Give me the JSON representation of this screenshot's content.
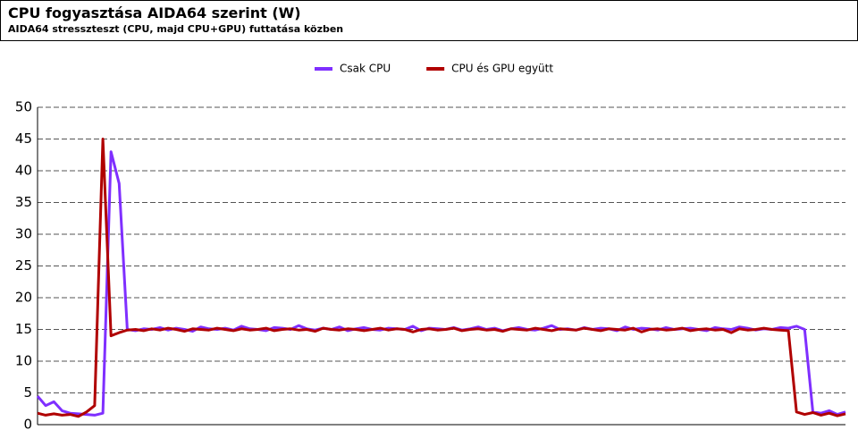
{
  "chart_data": {
    "type": "line",
    "title": "CPU fogyasztása AIDA64 szerint (W)",
    "subtitle": "AIDA64 stresszteszt (CPU, majd CPU+GPU) futtatása közben",
    "categories": [
      null,
      null,
      null,
      null,
      null,
      null,
      null,
      null,
      null,
      null,
      null,
      null,
      null,
      null,
      null,
      null,
      null,
      null,
      null,
      null,
      null,
      null,
      null,
      null,
      null,
      null,
      null,
      null,
      null,
      null,
      null,
      null,
      null,
      null,
      null,
      null,
      null,
      null,
      null,
      null,
      null,
      null,
      null,
      null,
      null,
      null,
      null,
      null,
      null,
      null,
      null,
      null,
      null,
      null,
      null,
      null,
      null,
      null,
      null,
      null,
      null,
      null,
      null,
      null,
      null,
      null,
      null,
      null,
      null,
      null,
      null,
      null,
      null,
      null,
      null,
      null,
      null,
      null,
      null,
      null,
      null,
      null,
      null,
      null,
      null,
      null,
      null,
      null,
      null,
      null,
      null,
      null,
      null,
      null,
      null,
      null,
      null,
      null,
      null,
      null
    ],
    "series": [
      {
        "name": "Csak CPU",
        "color": "#7f2fff",
        "values": [
          4.5,
          3.0,
          3.6,
          2.2,
          1.8,
          1.7,
          1.6,
          1.5,
          1.8,
          43.0,
          38.0,
          15.0,
          14.8,
          15.1,
          15.0,
          15.3,
          14.9,
          15.2,
          15.0,
          14.7,
          15.4,
          15.1,
          15.0,
          15.2,
          14.9,
          15.5,
          15.1,
          15.0,
          14.8,
          15.3,
          15.2,
          15.0,
          15.6,
          15.1,
          14.9,
          15.2,
          15.0,
          15.4,
          14.8,
          15.1,
          15.3,
          15.0,
          14.9,
          15.2,
          15.1,
          15.0,
          15.5,
          14.8,
          15.2,
          15.1,
          15.0,
          15.3,
          14.9,
          15.1,
          15.4,
          15.0,
          15.2,
          14.8,
          15.1,
          15.3,
          15.0,
          14.9,
          15.2,
          15.6,
          15.0,
          15.1,
          14.9,
          15.3,
          15.0,
          15.2,
          15.1,
          14.8,
          15.4,
          15.0,
          15.2,
          15.1,
          14.9,
          15.3,
          15.0,
          15.1,
          15.2,
          15.0,
          14.8,
          15.3,
          15.1,
          15.0,
          15.4,
          15.2,
          14.9,
          15.1,
          15.0,
          15.3,
          15.2,
          15.5,
          15.0,
          2.0,
          1.8,
          2.2,
          1.6,
          2.0
        ]
      },
      {
        "name": "CPU és GPU együtt",
        "color": "#b00000",
        "values": [
          1.8,
          1.5,
          1.7,
          1.5,
          1.6,
          1.3,
          2.0,
          3.0,
          45.0,
          14.0,
          14.5,
          14.9,
          15.0,
          14.8,
          15.1,
          14.9,
          15.2,
          15.0,
          14.7,
          15.1,
          15.0,
          14.9,
          15.2,
          15.0,
          14.8,
          15.1,
          14.9,
          15.0,
          15.2,
          14.8,
          15.0,
          15.1,
          14.9,
          15.0,
          14.7,
          15.2,
          15.0,
          14.9,
          15.1,
          15.0,
          14.8,
          15.0,
          15.2,
          14.9,
          15.1,
          15.0,
          14.6,
          15.0,
          15.1,
          14.9,
          15.0,
          15.2,
          14.8,
          15.0,
          15.1,
          14.9,
          15.0,
          14.7,
          15.1,
          15.0,
          14.9,
          15.2,
          15.0,
          14.8,
          15.1,
          15.0,
          14.9,
          15.2,
          15.0,
          14.8,
          15.1,
          15.0,
          14.9,
          15.2,
          14.6,
          15.0,
          15.1,
          14.9,
          15.0,
          15.2,
          14.8,
          15.0,
          15.1,
          14.9,
          15.0,
          14.5,
          15.1,
          14.9,
          15.0,
          15.2,
          15.0,
          14.9,
          14.8,
          2.0,
          1.6,
          1.9,
          1.5,
          1.8,
          1.4,
          1.7
        ]
      }
    ],
    "ylim": [
      0,
      50
    ],
    "yticks": [
      0,
      5,
      10,
      15,
      20,
      25,
      30,
      35,
      40,
      45,
      50
    ],
    "grid": true
  }
}
